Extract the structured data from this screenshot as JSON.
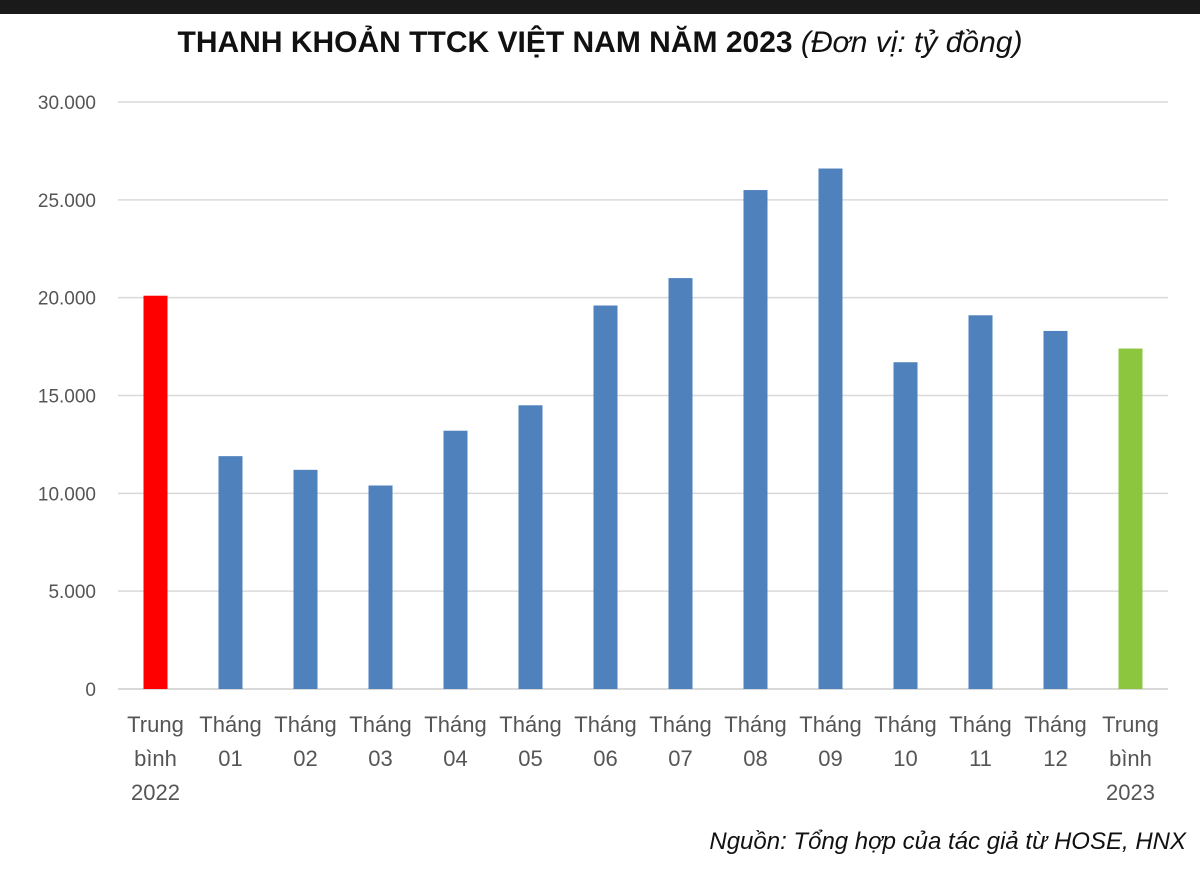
{
  "title": "THANH KHOẢN TTCK VIỆT NAM NĂM 2023",
  "title_unit": "(Đơn vị: tỷ đồng)",
  "source": "Nguồn: Tổng hợp của tác giả từ HOSE, HNX",
  "colors": {
    "bar_default": "#4f81bd",
    "bar_2022_avg": "#ff0000",
    "bar_2023_avg": "#8cc63f",
    "gridline": "#d9d9d9",
    "axis_text": "#555555"
  },
  "chart_data": {
    "type": "bar",
    "title": "THANH KHOẢN TTCK VIỆT NAM NĂM 2023",
    "unit": "(Đơn vị: tỷ đồng)",
    "xlabel": "",
    "ylabel": "",
    "ylim": [
      0,
      30000
    ],
    "yticks": [
      0,
      5000,
      10000,
      15000,
      20000,
      25000,
      30000
    ],
    "ytick_labels": [
      "0",
      "5.000",
      "10.000",
      "15.000",
      "20.000",
      "25.000",
      "30.000"
    ],
    "grid": true,
    "legend": "none",
    "categories": [
      [
        "Trung",
        "bình",
        "2022"
      ],
      [
        "Tháng",
        "01"
      ],
      [
        "Tháng",
        "02"
      ],
      [
        "Tháng",
        "03"
      ],
      [
        "Tháng",
        "04"
      ],
      [
        "Tháng",
        "05"
      ],
      [
        "Tháng",
        "06"
      ],
      [
        "Tháng",
        "07"
      ],
      [
        "Tháng",
        "08"
      ],
      [
        "Tháng",
        "09"
      ],
      [
        "Tháng",
        "10"
      ],
      [
        "Tháng",
        "11"
      ],
      [
        "Tháng",
        "12"
      ],
      [
        "Trung",
        "bình",
        "2023"
      ]
    ],
    "values": [
      20100,
      11900,
      11200,
      10400,
      13200,
      14500,
      19600,
      21000,
      25500,
      26600,
      16700,
      19100,
      18300,
      17400
    ],
    "bar_colors": [
      "#ff0000",
      "#4f81bd",
      "#4f81bd",
      "#4f81bd",
      "#4f81bd",
      "#4f81bd",
      "#4f81bd",
      "#4f81bd",
      "#4f81bd",
      "#4f81bd",
      "#4f81bd",
      "#4f81bd",
      "#4f81bd",
      "#8cc63f"
    ]
  }
}
